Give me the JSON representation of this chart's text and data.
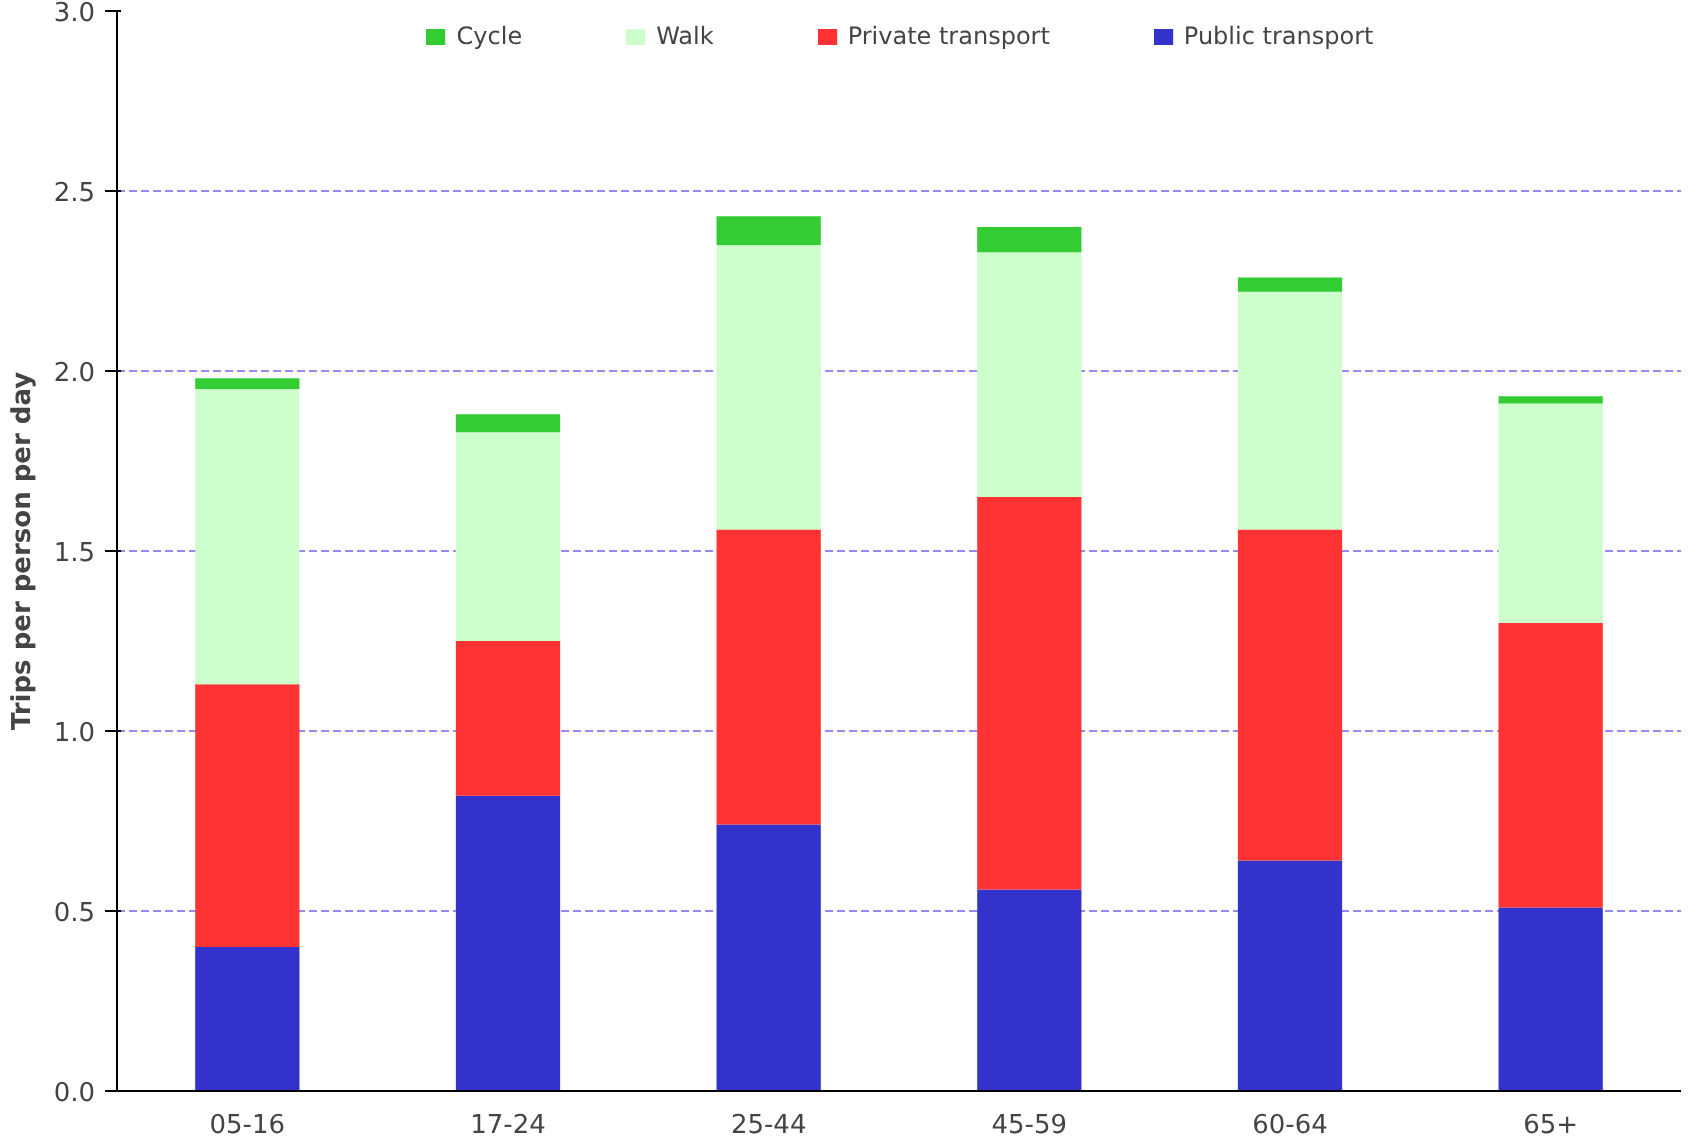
{
  "chart_data": {
    "type": "bar",
    "stacked": true,
    "ylabel": "Trips per person per day",
    "categories": [
      "05-16",
      "17-24",
      "25-44",
      "45-59",
      "60-64",
      "65+"
    ],
    "series": [
      {
        "name": "Public transport",
        "color": "#3333cc",
        "values": [
          0.4,
          0.82,
          0.74,
          0.56,
          0.64,
          0.51
        ]
      },
      {
        "name": "Private transport",
        "color": "#ff3333",
        "values": [
          0.73,
          0.43,
          0.82,
          1.09,
          0.92,
          0.79
        ]
      },
      {
        "name": "Walk",
        "color": "#ccffcc",
        "values": [
          0.82,
          0.58,
          0.79,
          0.68,
          0.66,
          0.61
        ]
      },
      {
        "name": "Cycle",
        "color": "#33cc33",
        "values": [
          0.03,
          0.05,
          0.08,
          0.07,
          0.04,
          0.02
        ]
      }
    ],
    "ylim": [
      0,
      3.0
    ],
    "yticks": [
      {
        "value": 0,
        "label": "0.0"
      },
      0.5,
      {
        "value": 1,
        "label": "1.0"
      },
      1.5,
      {
        "value": 2,
        "label": "2.0"
      },
      2.5,
      {
        "value": 3,
        "label": "3.0"
      }
    ],
    "grid": "y",
    "legend": "top"
  }
}
